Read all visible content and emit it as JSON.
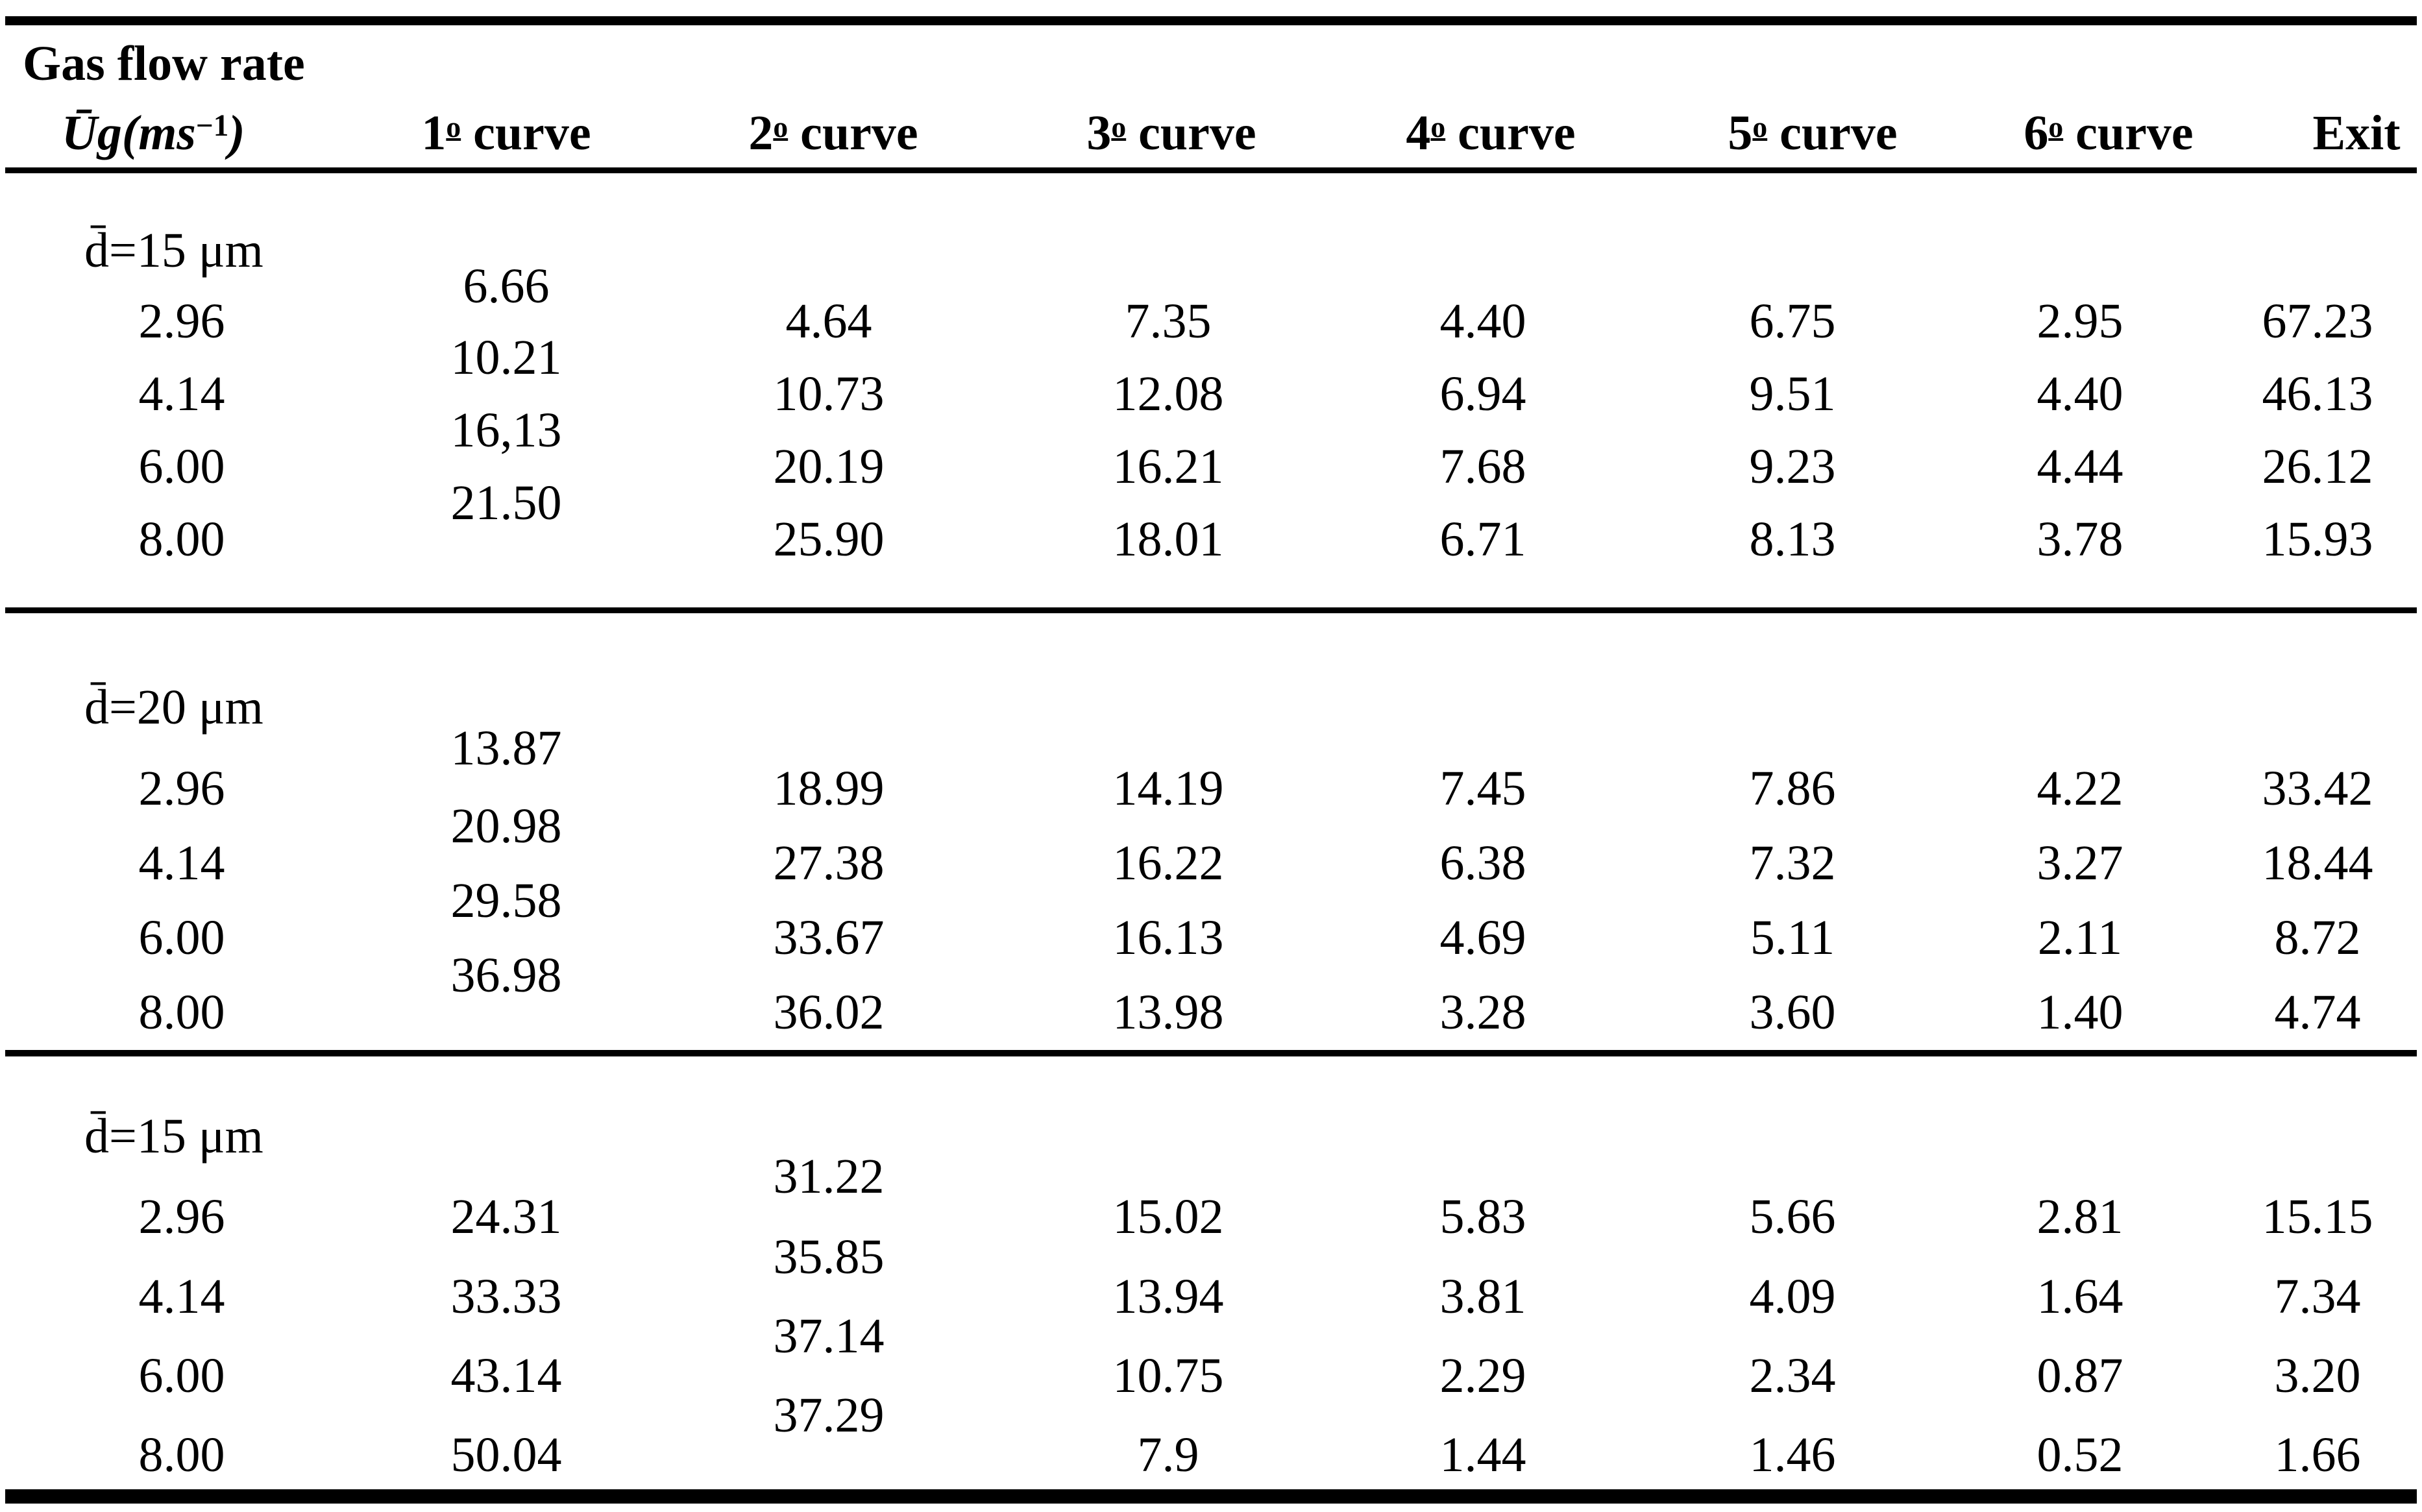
{
  "table": {
    "title": "Gas flow rate",
    "unit": {
      "base": "Ūg(ms",
      "sup": "−1",
      "close": ")"
    },
    "column_headers": [
      {
        "num": "1",
        "ordinal": "o",
        "word": "curve"
      },
      {
        "num": "2",
        "ordinal": "o",
        "word": "curve"
      },
      {
        "num": "3",
        "ordinal": "o",
        "word": "curve"
      },
      {
        "num": "4",
        "ordinal": "o",
        "word": "curve"
      },
      {
        "num": "5",
        "ordinal": "o",
        "word": "curve"
      },
      {
        "num": "6",
        "ordinal": "o",
        "word": "curve"
      },
      {
        "word": "Exit"
      }
    ],
    "sections": [
      {
        "label": "d̄=15 μm",
        "flow_rates": [
          "2.96",
          "4.14",
          "6.00",
          "8.00"
        ],
        "staggered_column": 0,
        "columns": [
          [
            "6.66",
            "10.21",
            "16,13",
            "21.50"
          ],
          [
            "4.64",
            "10.73",
            "20.19",
            "25.90"
          ],
          [
            "7.35",
            "12.08",
            "16.21",
            "18.01"
          ],
          [
            "4.40",
            "6.94",
            "7.68",
            "6.71"
          ],
          [
            "6.75",
            "9.51",
            "9.23",
            "8.13"
          ],
          [
            "2.95",
            "4.40",
            "4.44",
            "3.78"
          ],
          [
            "67.23",
            "46.13",
            "26.12",
            "15.93"
          ]
        ]
      },
      {
        "label": "d̄=20 μm",
        "flow_rates": [
          "2.96",
          "4.14",
          "6.00",
          "8.00"
        ],
        "staggered_column": 0,
        "columns": [
          [
            "13.87",
            "20.98",
            "29.58",
            "36.98"
          ],
          [
            "18.99",
            "27.38",
            "33.67",
            "36.02"
          ],
          [
            "14.19",
            "16.22",
            "16.13",
            "13.98"
          ],
          [
            "7.45",
            "6.38",
            "4.69",
            "3.28"
          ],
          [
            "7.86",
            "7.32",
            "5.11",
            "3.60"
          ],
          [
            "4.22",
            "3.27",
            "2.11",
            "1.40"
          ],
          [
            "33.42",
            "18.44",
            "8.72",
            "4.74"
          ]
        ]
      },
      {
        "label": "d̄=15 μm",
        "flow_rates": [
          "2.96",
          "4.14",
          "6.00",
          "8.00"
        ],
        "staggered_column": 1,
        "columns": [
          [
            "24.31",
            "33.33",
            "43.14",
            "50.04"
          ],
          [
            "31.22",
            "35.85",
            "37.14",
            "37.29"
          ],
          [
            "15.02",
            "13.94",
            "10.75",
            "7.9"
          ],
          [
            "5.83",
            "3.81",
            "2.29",
            "1.44"
          ],
          [
            "5.66",
            "4.09",
            "2.34",
            "1.46"
          ],
          [
            "2.81",
            "1.64",
            "0.87",
            "0.52"
          ],
          [
            "15.15",
            "7.34",
            "3.20",
            "1.66"
          ]
        ]
      }
    ]
  }
}
